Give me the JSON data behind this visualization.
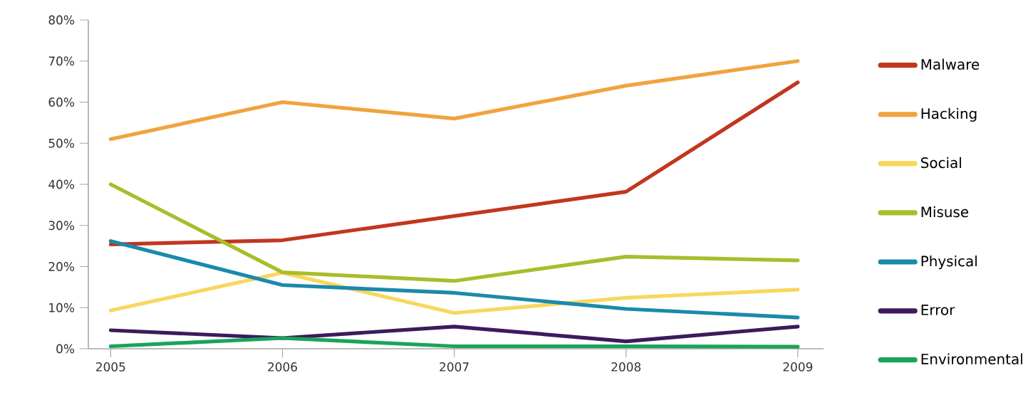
{
  "chart_data": {
    "type": "line",
    "x": [
      2005,
      2006,
      2007,
      2008,
      2009
    ],
    "xlim": [
      2004.87,
      2009.15
    ],
    "xticks": [
      2005,
      2006,
      2007,
      2008,
      2009
    ],
    "ylim": [
      0,
      80
    ],
    "yticks": [
      {
        "value": 0,
        "label": "0%"
      },
      {
        "value": 10,
        "label": "10%"
      },
      {
        "value": 20,
        "label": "20%"
      },
      {
        "value": 30,
        "label": "30%"
      },
      {
        "value": 40,
        "label": "40%"
      },
      {
        "value": 50,
        "label": "50%"
      },
      {
        "value": 60,
        "label": "60%"
      },
      {
        "value": 70,
        "label": "70%"
      },
      {
        "value": 80,
        "label": "80%"
      }
    ],
    "series": [
      {
        "name": "Malware",
        "color": "#c2361f",
        "values": [
          25.4,
          26.4,
          32.3,
          38.2,
          64.8
        ]
      },
      {
        "name": "Hacking",
        "color": "#f0a33f",
        "values": [
          51,
          60,
          56,
          64,
          70
        ]
      },
      {
        "name": "Social",
        "color": "#f8d75c",
        "values": [
          9.3,
          18.5,
          8.7,
          12.4,
          14.4
        ]
      },
      {
        "name": "Misuse",
        "color": "#a8bd2c",
        "values": [
          40,
          18.6,
          16.5,
          22.4,
          21.5
        ]
      },
      {
        "name": "Physical",
        "color": "#1a8aab",
        "values": [
          26.2,
          15.5,
          13.6,
          9.7,
          7.6
        ]
      },
      {
        "name": "Error",
        "color": "#3d1a5e",
        "values": [
          4.5,
          2.6,
          5.4,
          1.8,
          5.4
        ]
      },
      {
        "name": "Environmental",
        "color": "#1ba35b",
        "values": [
          0.6,
          2.6,
          0.6,
          0.6,
          0.5
        ]
      }
    ],
    "grid": false,
    "legend": "right",
    "marker": "none",
    "line_style": "solid"
  }
}
